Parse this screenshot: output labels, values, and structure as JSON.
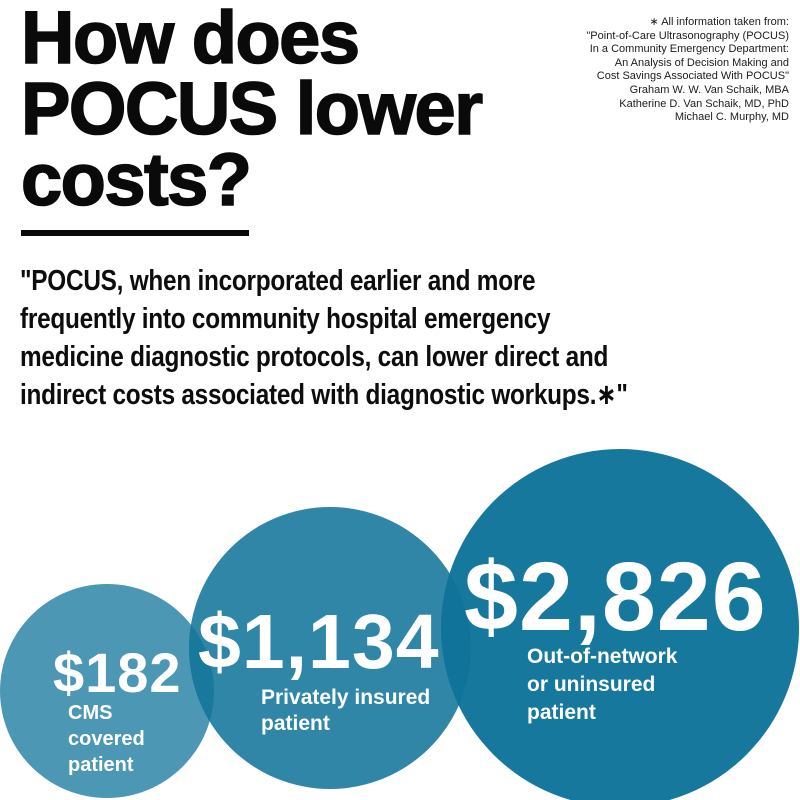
{
  "colors": {
    "background": "#ffffff",
    "text": "#0d0d0d",
    "bubble_base": "#10749A",
    "bubble_rendered": [
      "#4C99B5",
      "#2E86A6",
      "#16769B"
    ],
    "bubble_text": "#ffffff"
  },
  "title": {
    "text": "How does POCUS lower costs?",
    "lines": [
      "How does",
      "POCUS lower",
      "costs?"
    ]
  },
  "citation": {
    "lines": [
      "∗ All information taken from:",
      "\"Point-of-Care Ultrasonography (POCUS)",
      "In a Community Emergency Department:",
      "An Analysis of Decision Making and",
      "Cost Savings Associated With POCUS\"",
      "Graham W. W. Van Schaik, MBA",
      "Katherine D. Van Schaik, MD, PhD",
      "Michael C. Murphy, MD"
    ]
  },
  "quote": {
    "text": "\"POCUS, when incorporated earlier and more frequently into community hospital emergency medicine diagnostic protocols, can lower direct and indirect costs associated with diagnostic workups.∗\"",
    "lines": [
      "\"POCUS, when incorporated earlier and more",
      "frequently into community hospital emergency",
      "medicine diagnostic protocols, can lower direct and",
      "indirect costs associated with diagnostic workups.∗\""
    ]
  },
  "circles": [
    {
      "value": "$182",
      "label_lines": [
        "CMS",
        "covered",
        "patient"
      ]
    },
    {
      "value": "$1,134",
      "label_lines": [
        "Privately insured",
        "patient"
      ]
    },
    {
      "value": "$2,826",
      "label_lines": [
        "Out-of-network",
        "or uninsured",
        "patient"
      ]
    }
  ],
  "chart_data": {
    "type": "bubble",
    "title": "How does POCUS lower costs?",
    "categories": [
      "CMS covered patient",
      "Privately insured patient",
      "Out-of-network or uninsured patient"
    ],
    "values": [
      182,
      1134,
      2826
    ],
    "value_labels": [
      "$182",
      "$1,134",
      "$2,826"
    ],
    "unit": "USD",
    "legend_position": "none",
    "notes": "Bubble area scales with patient cost; circles overlap with translucent teal fill"
  }
}
